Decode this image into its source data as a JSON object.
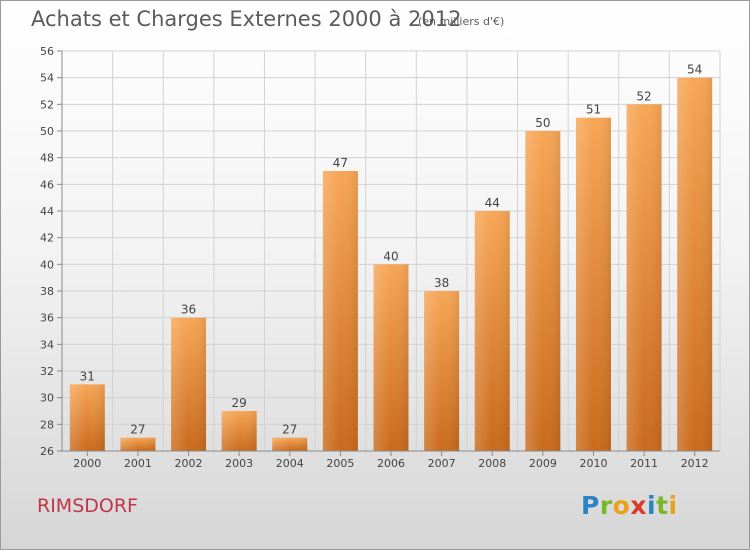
{
  "header": {
    "title": "Achats et Charges Externes 2000 à 2012",
    "subtitle": "(en milliers d'€)"
  },
  "footer": {
    "commune": "RIMSDORF",
    "logo_text": "Proxiti",
    "logo_letters": [
      {
        "ch": "P",
        "color": "#2b83c6"
      },
      {
        "ch": "r",
        "color": "#7ab828"
      },
      {
        "ch": "o",
        "color": "#e8a21a"
      },
      {
        "ch": "x",
        "color": "#d93a2b"
      },
      {
        "ch": "i",
        "color": "#2b83c6"
      },
      {
        "ch": "t",
        "color": "#7ab828"
      },
      {
        "ch": "i",
        "color": "#e8a21a"
      }
    ]
  },
  "chart_data": {
    "type": "bar",
    "categories": [
      "2000",
      "2001",
      "2002",
      "2003",
      "2004",
      "2005",
      "2006",
      "2007",
      "2008",
      "2009",
      "2010",
      "2011",
      "2012"
    ],
    "values": [
      31,
      27,
      36,
      29,
      27,
      47,
      40,
      38,
      44,
      50,
      51,
      52,
      54
    ],
    "ylim": [
      26,
      56
    ],
    "yticks": [
      26,
      28,
      30,
      32,
      34,
      36,
      38,
      40,
      42,
      44,
      46,
      48,
      50,
      52,
      54,
      56
    ],
    "grid": true,
    "bar_color_top": "#f7a655",
    "bar_color_bottom": "#c96a1c"
  }
}
